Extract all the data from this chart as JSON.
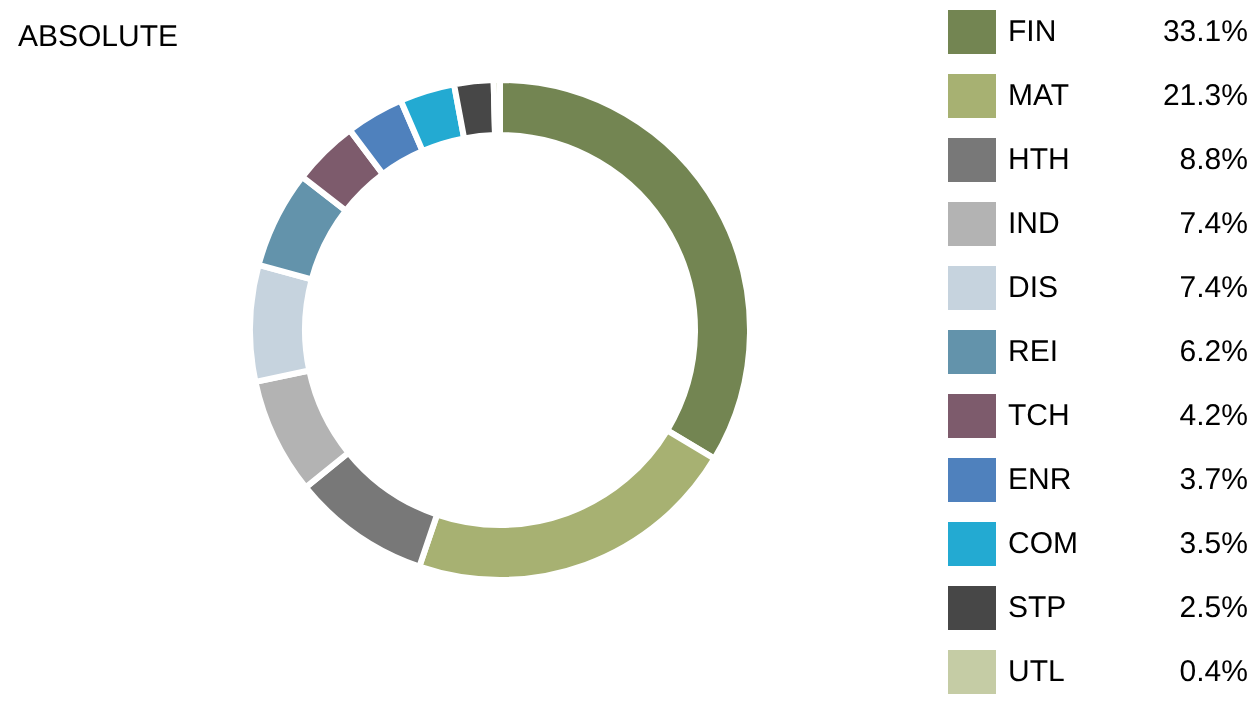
{
  "chart_data": {
    "type": "donut",
    "title": "ABSOLUTE",
    "legend": "right",
    "categories": [
      "FIN",
      "MAT",
      "HTH",
      "IND",
      "DIS",
      "REI",
      "TCH",
      "ENR",
      "COM",
      "STP",
      "UTL"
    ],
    "values": [
      33.1,
      21.3,
      8.8,
      7.4,
      7.4,
      6.2,
      4.2,
      3.7,
      3.5,
      2.5,
      0.4
    ],
    "value_labels": [
      "33.1%",
      "21.3%",
      "8.8%",
      "7.4%",
      "7.4%",
      "6.2%",
      "4.2%",
      "3.7%",
      "3.5%",
      "2.5%",
      "0.4%"
    ],
    "colors": [
      "#738552",
      "#a7b172",
      "#787878",
      "#b3b3b3",
      "#c6d3de",
      "#6393ab",
      "#7d5b6c",
      "#4f81bd",
      "#23aad2",
      "#474747",
      "#c5cca5"
    ]
  }
}
